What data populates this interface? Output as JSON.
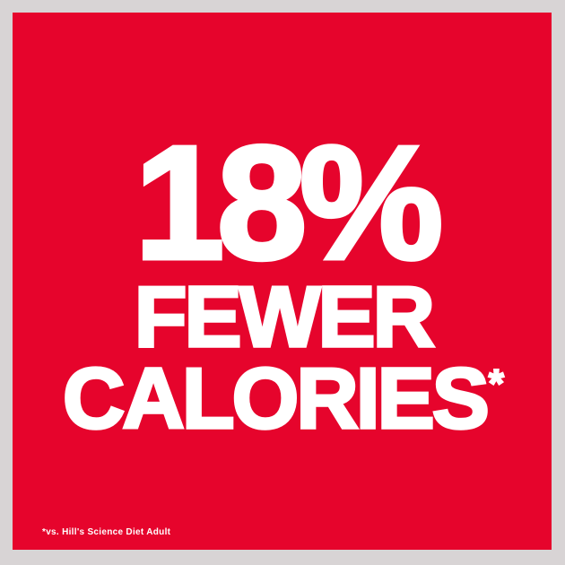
{
  "poster": {
    "headline": {
      "line1": "18%",
      "line2": "FEWER",
      "line3": "CALORIES",
      "asterisk": "*"
    },
    "footnote": "*vs. Hill's Science Diet Adult",
    "colors": {
      "brand-red": "#e6042c",
      "frame-gray": "#d8d4d5",
      "text-white": "#ffffff"
    }
  }
}
